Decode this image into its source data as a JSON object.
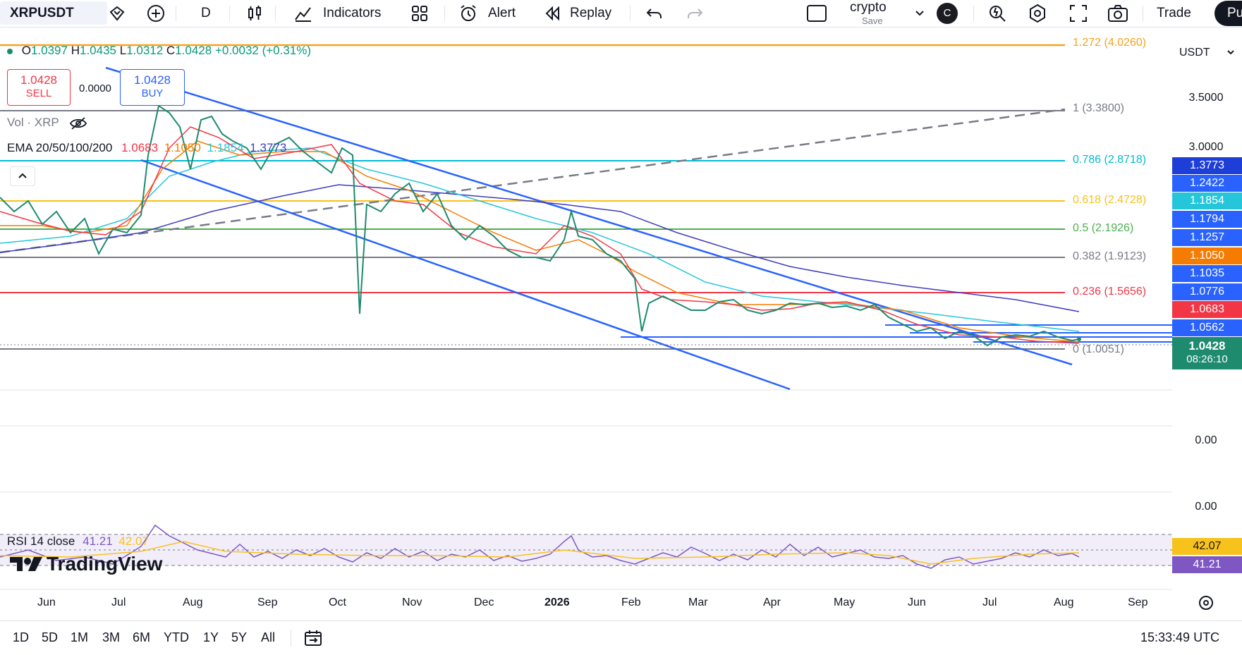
{
  "toolbar": {
    "symbol": "XRPUSDT",
    "interval": "D",
    "indicators_label": "Indicators",
    "alert_label": "Alert",
    "replay_label": "Replay",
    "layout_name": "crypto",
    "layout_status": "Save",
    "avatar_letter": "C",
    "trade_label": "Trade",
    "publish_label": "Pu"
  },
  "legend": {
    "ohlc_prefix_o": "O",
    "open": "1.0397",
    "ohlc_prefix_h": "H",
    "high": "1.0435",
    "ohlc_prefix_l": "L",
    "low": "1.0312",
    "ohlc_prefix_c": "C",
    "close": "1.0428",
    "change": "+0.0032 (+0.31%)",
    "sell_price": "1.0428",
    "sell_label": "SELL",
    "spread": "0.0000",
    "buy_price": "1.0428",
    "buy_label": "BUY",
    "vol_label": "Vol · XRP",
    "ema_label": "EMA 20/50/100/200",
    "ema20": "1.0683",
    "ema50": "1.1050",
    "ema100": "1.1854",
    "ema200": "1.3773",
    "rsi_label": "RSI 14 close",
    "rsi_value": "41.21",
    "rsi_ma": "42.07"
  },
  "fib_levels": [
    {
      "label": "1.272 (4.0260)",
      "color": "#f7a21b"
    },
    {
      "label": "1 (3.3800)",
      "color": "#787b86"
    },
    {
      "label": "0.786 (2.8718)",
      "color": "#00bcd4"
    },
    {
      "label": "0.618 (2.4728)",
      "color": "#f7c21b"
    },
    {
      "label": "0.5 (2.1926)",
      "color": "#4caf50"
    },
    {
      "label": "0.382 (1.9123)",
      "color": "#787b86"
    },
    {
      "label": "0.236 (1.5656)",
      "color": "#f23645"
    },
    {
      "label": "0 (1.0051)",
      "color": "#787b86"
    }
  ],
  "axis": {
    "currency": "USDT",
    "ticks": [
      "3.5000",
      "3.0000"
    ],
    "vol_tick": "0.00",
    "pane_tick": "0.00",
    "price_labels": [
      {
        "value": "1.3773",
        "color": "#1e3ed8"
      },
      {
        "value": "1.2422",
        "color": "#2962ff"
      },
      {
        "value": "1.1854",
        "color": "#26c6da"
      },
      {
        "value": "1.1794",
        "color": "#2962ff"
      },
      {
        "value": "1.1257",
        "color": "#2962ff"
      },
      {
        "value": "1.1050",
        "color": "#f57c00"
      },
      {
        "value": "1.1035",
        "color": "#2962ff"
      },
      {
        "value": "1.0776",
        "color": "#2962ff"
      },
      {
        "value": "1.0683",
        "color": "#f23645"
      },
      {
        "value": "1.0562",
        "color": "#2962ff"
      }
    ],
    "last_price": "1.0428",
    "countdown": "08:26:10",
    "rsi_ma_label": "42.07",
    "rsi_label": "41.21"
  },
  "x_axis": [
    "Jun",
    "Jul",
    "Aug",
    "Sep",
    "Oct",
    "Nov",
    "Dec",
    "2026",
    "Feb",
    "Mar",
    "Apr",
    "May",
    "Jun",
    "Jul",
    "Aug",
    "Sep"
  ],
  "watermark": "TradingView",
  "timeframes": [
    "1D",
    "5D",
    "1M",
    "3M",
    "6M",
    "YTD",
    "1Y",
    "5Y",
    "All"
  ],
  "clock": "15:33:49 UTC"
}
